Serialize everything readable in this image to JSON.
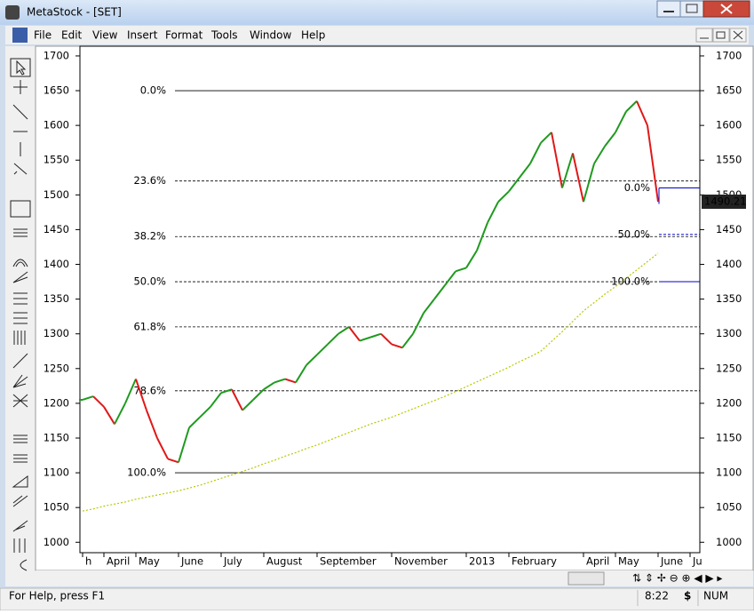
{
  "window": {
    "title": "MetaStock - [SET]",
    "menu": [
      "File",
      "Edit",
      "View",
      "Insert",
      "Format",
      "Tools",
      "Window",
      "Help"
    ],
    "status": {
      "help": "For Help, press F1",
      "time": "8:22",
      "num": "NUM"
    }
  },
  "chart_data": {
    "type": "line",
    "categories": [
      "h",
      null,
      "April",
      null,
      null,
      "May",
      null,
      null,
      null,
      "June",
      null,
      null,
      null,
      "July",
      null,
      null,
      null,
      "August",
      null,
      null,
      null,
      null,
      "September",
      null,
      null,
      null,
      null,
      null,
      null,
      "November",
      null,
      null,
      null,
      null,
      null,
      null,
      "2013",
      null,
      null,
      null,
      "February",
      null,
      null,
      null,
      null,
      null,
      null,
      "April",
      null,
      null,
      "May",
      null,
      null,
      null,
      "June",
      null,
      null,
      "Ju"
    ],
    "series": [
      {
        "color": "#1e9a1e",
        "down_color": "#e01818",
        "values": [
          1205,
          1210,
          1195,
          1170,
          1200,
          1235,
          1190,
          1150,
          1120,
          1115,
          1165,
          1180,
          1195,
          1215,
          1220,
          1190,
          1205,
          1220,
          1230,
          1235,
          1230,
          1255,
          1270,
          1285,
          1300,
          1310,
          1290,
          1295,
          1300,
          1285,
          1280,
          1300,
          1330,
          1350,
          1370,
          1390,
          1395,
          1420,
          1460,
          1490,
          1505,
          1525,
          1545,
          1575,
          1590,
          1510,
          1560,
          1490,
          1545,
          1570,
          1590,
          1620,
          1635,
          1600,
          1490,
          null,
          null,
          null
        ]
      },
      {
        "color": "#b8c800",
        "dashed": true,
        "values": [
          1045,
          1048,
          1052,
          1055,
          1058,
          1062,
          1065,
          1068,
          1071,
          1074,
          1078,
          1082,
          1087,
          1092,
          1097,
          1102,
          1107,
          1113,
          1118,
          1124,
          1129,
          1135,
          1140,
          1146,
          1152,
          1158,
          1164,
          1170,
          1175,
          1180,
          1186,
          1192,
          1198,
          1204,
          1210,
          1217,
          1224,
          1231,
          1238,
          1245,
          1252,
          1260,
          1267,
          1275,
          1289,
          1303,
          1318,
          1333,
          1345,
          1357,
          1368,
          1380,
          1392,
          1404,
          1416,
          null,
          null,
          null
        ]
      }
    ],
    "ylim": [
      985,
      1714
    ],
    "yticks": [
      1000,
      1050,
      1100,
      1150,
      1200,
      1250,
      1300,
      1350,
      1400,
      1450,
      1500,
      1550,
      1600,
      1650,
      1700
    ],
    "retracements": [
      {
        "color": "#000000",
        "levels": [
          {
            "value": 1650,
            "label": "0.0%"
          },
          {
            "value": 1520,
            "label": "23.6%"
          },
          {
            "value": 1440,
            "label": "38.2%"
          },
          {
            "value": 1375,
            "label": "50.0%"
          },
          {
            "value": 1310,
            "label": "61.8%"
          },
          {
            "value": 1218,
            "label": "78.6%"
          },
          {
            "value": 1100,
            "label": "100.0%"
          }
        ]
      },
      {
        "color": "#0000cc",
        "levels": [
          {
            "value": 1510,
            "label": "0.0%"
          },
          {
            "value": 1443,
            "label": "50.0%"
          },
          {
            "value": 1375,
            "label": "100.0%"
          }
        ]
      }
    ],
    "last_price": 1490.21
  }
}
